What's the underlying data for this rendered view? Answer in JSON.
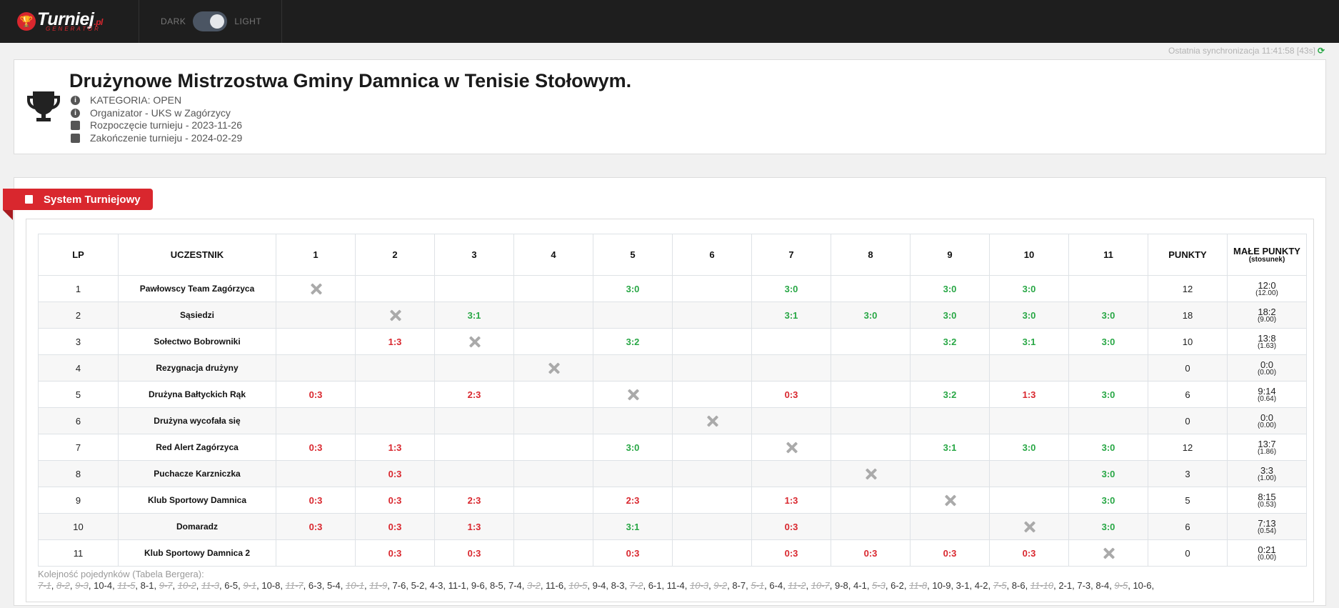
{
  "brand": {
    "name": "Turniej",
    "suffix": ".pl",
    "sub": "GENERATOR"
  },
  "theme": {
    "dark_label": "DARK",
    "light_label": "LIGHT"
  },
  "sync": {
    "text": "Ostatnia synchronizacja 11:41:58 [43s]"
  },
  "tournament": {
    "title": "Drużynowe Mistrzostwa Gminy Damnica w Tenisie Stołowym.",
    "info": [
      {
        "icon": "info-icon",
        "text": "KATEGORIA: OPEN"
      },
      {
        "icon": "info-icon",
        "text": "Organizator - UKS w Zagórzycy"
      },
      {
        "icon": "calendar-icon",
        "text": "Rozpoczęcie turnieju - 2023-11-26"
      },
      {
        "icon": "calendar-icon",
        "text": "Zakończenie turnieju - 2024-02-29"
      }
    ]
  },
  "section": {
    "label": "System Turniejowy"
  },
  "table": {
    "headers": {
      "lp": "LP",
      "participant": "UCZESTNIK",
      "rounds": [
        "1",
        "2",
        "3",
        "4",
        "5",
        "6",
        "7",
        "8",
        "9",
        "10",
        "11"
      ],
      "points": "PUNKTY",
      "small_points": "MAŁE PUNKTY",
      "ratio_label": "(stosunek)"
    },
    "rows": [
      {
        "lp": "1",
        "name": "Pawłowscy Team Zagórzyca",
        "results": [
          "X",
          "",
          "",
          "",
          "3:0",
          "",
          "3:0",
          "",
          "3:0",
          "3:0",
          ""
        ],
        "points": "12",
        "small": "12:0",
        "ratio": "(12.00)"
      },
      {
        "lp": "2",
        "name": "Sąsiedzi",
        "results": [
          "",
          "X",
          "3:1",
          "",
          "",
          "",
          "3:1",
          "3:0",
          "3:0",
          "3:0",
          "3:0"
        ],
        "points": "18",
        "small": "18:2",
        "ratio": "(9.00)"
      },
      {
        "lp": "3",
        "name": "Sołectwo Bobrowniki",
        "results": [
          "",
          "1:3",
          "X",
          "",
          "3:2",
          "",
          "",
          "",
          "3:2",
          "3:1",
          "3:0"
        ],
        "points": "10",
        "small": "13:8",
        "ratio": "(1.63)"
      },
      {
        "lp": "4",
        "name": "Rezygnacja drużyny",
        "results": [
          "",
          "",
          "",
          "X",
          "",
          "",
          "",
          "",
          "",
          "",
          ""
        ],
        "points": "0",
        "small": "0:0",
        "ratio": "(0.00)"
      },
      {
        "lp": "5",
        "name": "Drużyna Bałtyckich Rąk",
        "results": [
          "0:3",
          "",
          "2:3",
          "",
          "X",
          "",
          "0:3",
          "",
          "3:2",
          "1:3",
          "3:0"
        ],
        "points": "6",
        "small": "9:14",
        "ratio": "(0.64)"
      },
      {
        "lp": "6",
        "name": "Drużyna wycofała się",
        "results": [
          "",
          "",
          "",
          "",
          "",
          "X",
          "",
          "",
          "",
          "",
          ""
        ],
        "points": "0",
        "small": "0:0",
        "ratio": "(0.00)"
      },
      {
        "lp": "7",
        "name": "Red Alert Zagórzyca",
        "results": [
          "0:3",
          "1:3",
          "",
          "",
          "3:0",
          "",
          "X",
          "",
          "3:1",
          "3:0",
          "3:0"
        ],
        "points": "12",
        "small": "13:7",
        "ratio": "(1.86)"
      },
      {
        "lp": "8",
        "name": "Puchacze Karzniczka",
        "results": [
          "",
          "0:3",
          "",
          "",
          "",
          "",
          "",
          "X",
          "",
          "",
          "3:0"
        ],
        "points": "3",
        "small": "3:3",
        "ratio": "(1.00)"
      },
      {
        "lp": "9",
        "name": "Klub Sportowy Damnica",
        "results": [
          "0:3",
          "0:3",
          "2:3",
          "",
          "2:3",
          "",
          "1:3",
          "",
          "X",
          "",
          "3:0"
        ],
        "points": "5",
        "small": "8:15",
        "ratio": "(0.53)"
      },
      {
        "lp": "10",
        "name": "Domaradz",
        "results": [
          "0:3",
          "0:3",
          "1:3",
          "",
          "3:1",
          "",
          "0:3",
          "",
          "",
          "X",
          "3:0"
        ],
        "points": "6",
        "small": "7:13",
        "ratio": "(0.54)"
      },
      {
        "lp": "11",
        "name": "Klub Sportowy Damnica 2",
        "results": [
          "",
          "0:3",
          "0:3",
          "",
          "0:3",
          "",
          "0:3",
          "0:3",
          "0:3",
          "0:3",
          "X"
        ],
        "points": "0",
        "small": "0:21",
        "ratio": "(0.00)"
      }
    ]
  },
  "berger": {
    "title": "Kolejność pojedynków (Tabela Bergera):",
    "pairs": [
      {
        "t": "7-1",
        "d": true
      },
      {
        "t": "8-2",
        "d": true
      },
      {
        "t": "9-3",
        "d": true
      },
      {
        "t": "10-4",
        "d": false
      },
      {
        "t": "11-5",
        "d": true
      },
      {
        "t": "8-1",
        "d": false
      },
      {
        "t": "9-7",
        "d": true
      },
      {
        "t": "10-2",
        "d": true
      },
      {
        "t": "11-3",
        "d": true
      },
      {
        "t": "6-5",
        "d": false
      },
      {
        "t": "9-1",
        "d": true
      },
      {
        "t": "10-8",
        "d": false
      },
      {
        "t": "11-7",
        "d": true
      },
      {
        "t": "6-3",
        "d": false
      },
      {
        "t": "5-4",
        "d": false
      },
      {
        "t": "10-1",
        "d": true
      },
      {
        "t": "11-9",
        "d": true
      },
      {
        "t": "7-6",
        "d": false
      },
      {
        "t": "5-2",
        "d": false
      },
      {
        "t": "4-3",
        "d": false
      },
      {
        "t": "11-1",
        "d": false
      },
      {
        "t": "9-6",
        "d": false
      },
      {
        "t": "8-5",
        "d": false
      },
      {
        "t": "7-4",
        "d": false
      },
      {
        "t": "3-2",
        "d": true
      },
      {
        "t": "11-6",
        "d": false
      },
      {
        "t": "10-5",
        "d": true
      },
      {
        "t": "9-4",
        "d": false
      },
      {
        "t": "8-3",
        "d": false
      },
      {
        "t": "7-2",
        "d": true
      },
      {
        "t": "6-1",
        "d": false
      },
      {
        "t": "11-4",
        "d": false
      },
      {
        "t": "10-3",
        "d": true
      },
      {
        "t": "9-2",
        "d": true
      },
      {
        "t": "8-7",
        "d": false
      },
      {
        "t": "5-1",
        "d": true
      },
      {
        "t": "6-4",
        "d": false
      },
      {
        "t": "11-2",
        "d": true
      },
      {
        "t": "10-7",
        "d": true
      },
      {
        "t": "9-8",
        "d": false
      },
      {
        "t": "4-1",
        "d": false
      },
      {
        "t": "5-3",
        "d": true
      },
      {
        "t": "6-2",
        "d": false
      },
      {
        "t": "11-8",
        "d": true
      },
      {
        "t": "10-9",
        "d": false
      },
      {
        "t": "3-1",
        "d": false
      },
      {
        "t": "4-2",
        "d": false
      },
      {
        "t": "7-5",
        "d": true
      },
      {
        "t": "8-6",
        "d": false
      },
      {
        "t": "11-10",
        "d": true
      },
      {
        "t": "2-1",
        "d": false
      },
      {
        "t": "7-3",
        "d": false
      },
      {
        "t": "8-4",
        "d": false
      },
      {
        "t": "9-5",
        "d": true
      },
      {
        "t": "10-6",
        "d": false
      }
    ]
  },
  "colors": {
    "accent": "#d9272e",
    "win": "#28a745",
    "loss": "#d9272e",
    "navbar": "#1e1e1e"
  }
}
